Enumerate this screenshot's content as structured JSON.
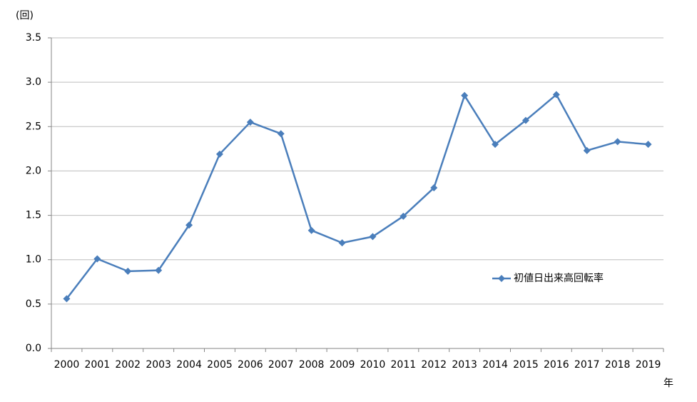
{
  "chart_data": {
    "type": "line",
    "y_label": "(回)",
    "x_label": "年",
    "categories": [
      "2000",
      "2001",
      "2002",
      "2003",
      "2004",
      "2005",
      "2006",
      "2007",
      "2008",
      "2009",
      "2010",
      "2011",
      "2012",
      "2013",
      "2014",
      "2015",
      "2016",
      "2017",
      "2018",
      "2019"
    ],
    "series": [
      {
        "name": "初値日出来高回転率",
        "color": "#4a7ebb",
        "values": [
          0.56,
          1.01,
          0.87,
          0.88,
          1.39,
          2.19,
          2.55,
          2.42,
          1.33,
          1.19,
          1.26,
          1.49,
          1.81,
          2.85,
          2.3,
          2.57,
          2.86,
          2.23,
          2.33,
          2.3
        ]
      }
    ],
    "ylim": [
      0,
      3.5
    ],
    "yticks": [
      {
        "value": 0,
        "label": "0.0"
      },
      0.5,
      {
        "value": 1,
        "label": "1.0"
      },
      1.5,
      {
        "value": 2,
        "label": "2.0"
      },
      2.5,
      {
        "value": 3,
        "label": "3.0"
      },
      3.5
    ],
    "grid": true,
    "legend": "inside-right"
  }
}
